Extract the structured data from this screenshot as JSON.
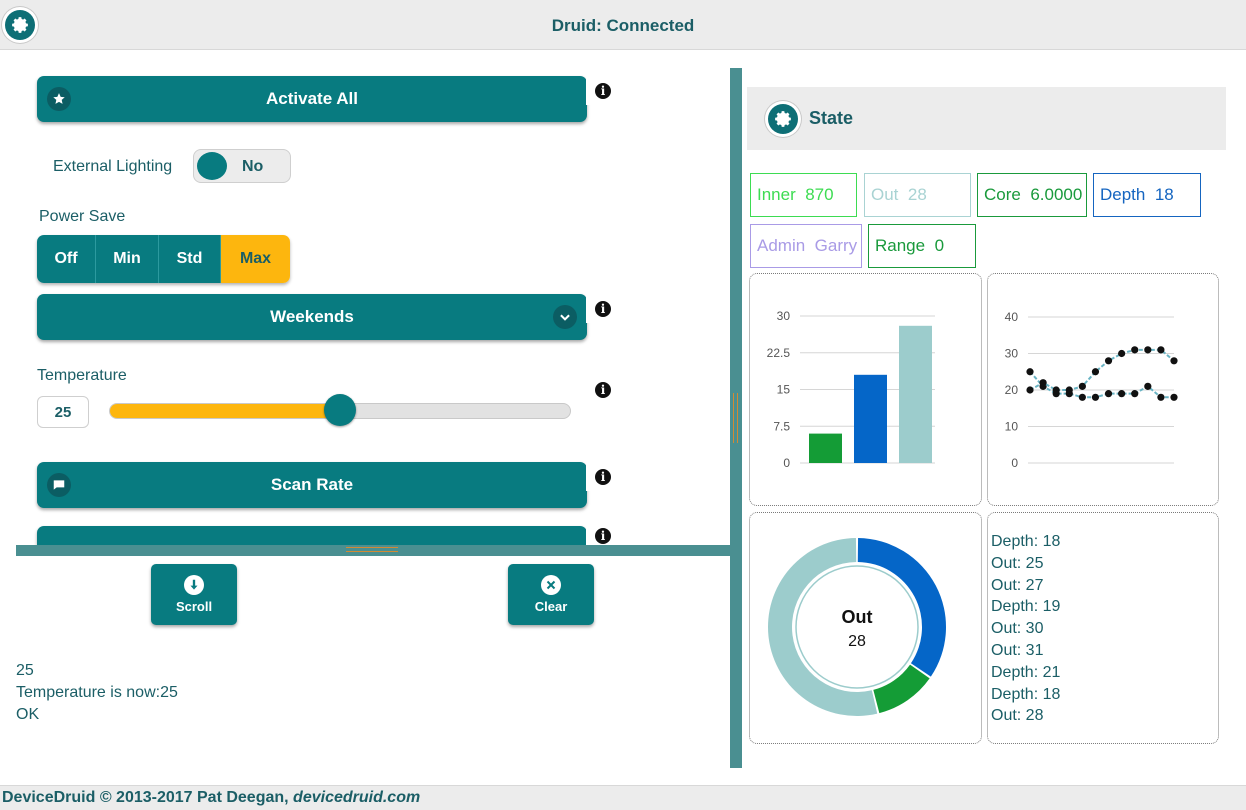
{
  "header": {
    "title": "Druid: Connected"
  },
  "controls": {
    "activate_all_label": "Activate All",
    "external_lighting": {
      "label": "External Lighting",
      "value": "No"
    },
    "power_save": {
      "label": "Power Save",
      "options": [
        "Off",
        "Min",
        "Std",
        "Max"
      ],
      "selected": "Max"
    },
    "schedule_select": {
      "value": "Weekends"
    },
    "temperature": {
      "label": "Temperature",
      "value": "25",
      "fraction": 0.5
    },
    "scan_rate_label": "Scan Rate",
    "scroll_label": "Scroll",
    "clear_label": "Clear"
  },
  "log": {
    "lines": [
      "25",
      "Temperature is now:25",
      "OK"
    ]
  },
  "state": {
    "title": "State",
    "tags": [
      {
        "label": "Inner",
        "value": "870",
        "color": "#3ddc52"
      },
      {
        "label": "Out",
        "value": "28",
        "color": "#a9d3d3"
      },
      {
        "label": "Core",
        "value": "6.0000",
        "color": "#1a9a3c"
      },
      {
        "label": "Depth",
        "value": "18",
        "color": "#1565c0"
      },
      {
        "label": "Admin",
        "value": "Garry",
        "color": "#a99be6"
      },
      {
        "label": "Range",
        "value": "0",
        "color": "#1a9a3c"
      }
    ],
    "feed": [
      "Depth: 18",
      "Out: 25",
      "Out: 27",
      "Depth: 19",
      "Out: 30",
      "Out: 31",
      "Depth: 21",
      "Depth: 18",
      "Out: 28"
    ]
  },
  "chart_data": [
    {
      "type": "bar",
      "categories": [
        "",
        "",
        ""
      ],
      "values": [
        6,
        18,
        28
      ],
      "colors": [
        "#149c36",
        "#0566c8",
        "#9ccccc"
      ],
      "yticks": [
        "0",
        "7.5",
        "15",
        "22.5",
        "30"
      ],
      "ylim": [
        0,
        30
      ],
      "grid": true
    },
    {
      "type": "line",
      "series": [
        {
          "values": [
            25,
            21,
            19,
            19,
            18,
            18,
            19,
            19,
            19,
            21,
            18,
            18
          ]
        },
        {
          "values": [
            20,
            22,
            20,
            20,
            21,
            25,
            28,
            30,
            31,
            31,
            31,
            28
          ]
        }
      ],
      "yticks": [
        "0",
        "10",
        "20",
        "30",
        "40"
      ],
      "ylim": [
        0,
        40
      ],
      "grid": true
    },
    {
      "type": "pie",
      "center_label": "Out",
      "center_value": "28",
      "segments": [
        {
          "value": 18,
          "color": "#0566c8"
        },
        {
          "value": 6,
          "color": "#149c36"
        },
        {
          "value": 28,
          "color": "#9ccccc"
        }
      ]
    }
  ],
  "footer": {
    "copyright": "DeviceDruid © 2013-2017 Pat Deegan, ",
    "link": "devicedruid.com"
  }
}
